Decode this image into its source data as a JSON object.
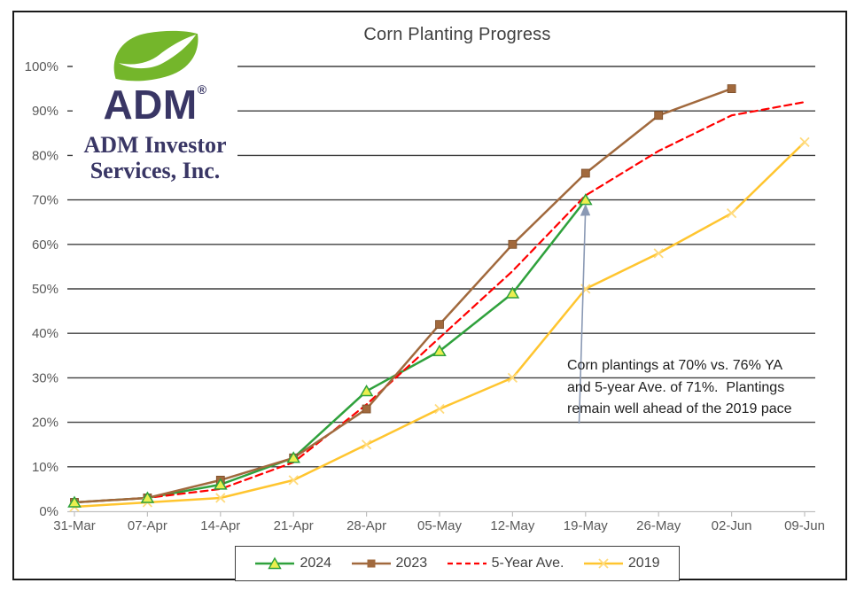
{
  "chart_data": {
    "type": "line",
    "title": "Corn Planting Progress",
    "categories": [
      "31-Mar",
      "07-Apr",
      "14-Apr",
      "21-Apr",
      "28-Apr",
      "05-May",
      "12-May",
      "19-May",
      "26-May",
      "02-Jun",
      "09-Jun"
    ],
    "series": [
      {
        "name": "2024",
        "color": "#2FA13C",
        "marker": "triangle",
        "marker_fill": "#EBEF4F",
        "dashed": false,
        "values": [
          2,
          3,
          6,
          12,
          27,
          36,
          49,
          70
        ]
      },
      {
        "name": "2023",
        "color": "#A1693D",
        "marker": "square",
        "marker_fill": "#A1693D",
        "dashed": false,
        "values": [
          2,
          3,
          7,
          12,
          23,
          42,
          60,
          76,
          89,
          95
        ]
      },
      {
        "name": "5-Year Ave.",
        "color": "#FF0000",
        "marker": "none",
        "marker_fill": "#FF0000",
        "dashed": true,
        "values": [
          2,
          3,
          5,
          11,
          24,
          39,
          54,
          71,
          81,
          89,
          92
        ]
      },
      {
        "name": "2019",
        "color": "#FFC52F",
        "marker": "x",
        "marker_fill": "#FFDB7E",
        "dashed": false,
        "values": [
          1,
          2,
          3,
          7,
          15,
          23,
          30,
          50,
          58,
          67,
          83
        ]
      }
    ],
    "xlabel": "",
    "ylabel": "",
    "ylim": [
      0,
      100
    ],
    "ytick_step": 10,
    "yticks": [
      "0%",
      "10%",
      "20%",
      "30%",
      "40%",
      "50%",
      "60%",
      "70%",
      "80%",
      "90%",
      "100%"
    ],
    "grid": "horizontal-only",
    "legend_position": "bottom",
    "colors": {
      "grid": "#3F3F3F",
      "axis": "#BFBFBF",
      "tick_label": "#595959",
      "title": "#3F3F3F"
    }
  },
  "annotation": {
    "text": "Corn plantings at 70% vs. 76% YA\nand 5-year Ave. of 71%.  Plantings\nremain well ahead of the 2019 pace",
    "arrow_color": "#8A99B4"
  },
  "logo": {
    "brand": "ADM",
    "registered": "®",
    "company_line1": "ADM Investor",
    "company_line2": "Services, Inc.",
    "navy": "#393665",
    "leaf_green": "#74B62B"
  }
}
